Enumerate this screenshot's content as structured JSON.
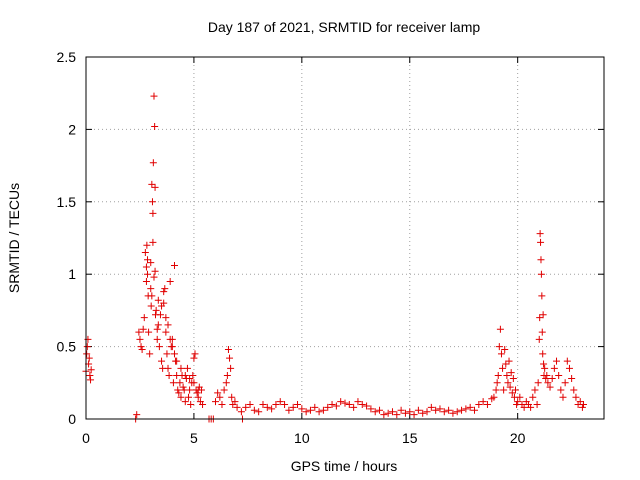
{
  "chart_data": {
    "type": "scatter",
    "title": "Day 187 of 2021, SRMTID for receiver lamp",
    "xlabel": "GPS time / hours",
    "ylabel": "SRMTID / TECUs",
    "xlim": [
      0,
      24
    ],
    "ylim": [
      0,
      2.5
    ],
    "grid": true,
    "marker": "+",
    "x_ticks": [
      0,
      5,
      10,
      15,
      20
    ],
    "x_tick_labels": [
      "0",
      "5",
      "10",
      "15",
      "20"
    ],
    "y_ticks": [
      0,
      0.5,
      1,
      1.5,
      2,
      2.5
    ],
    "y_tick_labels": [
      "0",
      "0.5",
      "1",
      "1.5",
      "2",
      "2.5"
    ],
    "color": "#e00000",
    "series": [
      {
        "name": "SRMTID",
        "x": [
          0.0,
          0.03,
          0.06,
          0.09,
          0.12,
          0.15,
          0.18,
          0.21,
          0.24,
          2.3,
          2.35,
          2.45,
          2.5,
          2.55,
          2.6,
          2.65,
          2.7,
          2.75,
          2.8,
          2.85,
          2.9,
          2.95,
          3.0,
          3.05,
          3.1,
          3.12,
          3.15,
          3.18,
          3.2,
          3.25,
          3.3,
          3.35,
          3.4,
          3.45,
          3.5,
          3.55,
          3.6,
          3.65,
          3.7,
          3.75,
          3.8,
          3.85,
          3.9,
          3.95,
          4.0,
          4.05,
          4.1,
          4.15,
          4.2,
          4.25,
          4.3,
          4.35,
          4.4,
          4.45,
          4.5,
          4.55,
          4.6,
          4.65,
          4.7,
          4.75,
          4.8,
          4.85,
          4.9,
          4.95,
          5.0,
          5.05,
          5.1,
          5.15,
          5.2,
          5.25,
          5.3,
          5.35,
          5.4,
          2.8,
          2.82,
          2.85,
          2.88,
          3.0,
          3.02,
          3.05,
          3.08,
          3.1,
          3.15,
          3.2,
          3.22,
          3.3,
          3.35,
          3.5,
          3.6,
          3.7,
          3.8,
          3.9,
          4.0,
          4.1,
          4.2,
          4.4,
          4.6,
          4.8,
          5.0,
          5.2,
          5.7,
          5.8,
          5.9,
          6.0,
          6.1,
          6.2,
          6.3,
          6.4,
          6.5,
          6.55,
          6.6,
          6.65,
          6.7,
          6.75,
          6.8,
          6.9,
          7.0,
          7.2,
          7.25,
          7.4,
          7.6,
          7.8,
          8.0,
          8.2,
          8.4,
          8.6,
          8.8,
          9.0,
          9.2,
          9.4,
          9.6,
          9.8,
          10.0,
          10.2,
          10.4,
          10.6,
          10.8,
          11.0,
          11.2,
          11.4,
          11.6,
          11.8,
          12.0,
          12.2,
          12.4,
          12.6,
          12.8,
          13.0,
          13.2,
          13.4,
          13.6,
          13.8,
          14.0,
          14.2,
          14.4,
          14.6,
          14.8,
          15.0,
          15.2,
          15.4,
          15.6,
          15.8,
          16.0,
          16.2,
          16.4,
          16.6,
          16.8,
          17.0,
          17.2,
          17.4,
          17.6,
          17.8,
          18.0,
          18.2,
          18.4,
          18.6,
          18.8,
          18.9,
          19.0,
          19.05,
          19.1,
          19.15,
          19.2,
          19.25,
          19.3,
          19.35,
          19.4,
          19.45,
          19.5,
          19.55,
          19.6,
          19.65,
          19.7,
          19.75,
          19.8,
          19.85,
          19.9,
          19.95,
          20.0,
          20.1,
          20.2,
          20.3,
          20.4,
          20.5,
          20.6,
          20.7,
          20.8,
          20.9,
          20.95,
          21.0,
          21.02,
          21.04,
          21.06,
          21.08,
          21.1,
          21.12,
          21.14,
          21.16,
          21.18,
          21.2,
          21.22,
          21.25,
          21.3,
          21.35,
          21.4,
          21.5,
          21.6,
          21.7,
          21.8,
          21.9,
          22.0,
          22.1,
          22.2,
          22.3,
          22.4,
          22.5,
          22.6,
          22.7,
          22.8,
          22.9,
          23.0,
          23.05
        ],
        "y": [
          0.33,
          0.45,
          0.5,
          0.55,
          0.38,
          0.42,
          0.3,
          0.27,
          0.34,
          0.0,
          0.03,
          0.6,
          0.55,
          0.5,
          0.48,
          0.62,
          0.7,
          1.15,
          0.95,
          1.1,
          0.6,
          0.45,
          0.9,
          0.85,
          1.42,
          1.77,
          2.23,
          2.02,
          1.6,
          0.75,
          0.55,
          0.65,
          0.5,
          0.72,
          0.4,
          0.35,
          0.8,
          0.9,
          0.6,
          0.45,
          0.35,
          0.3,
          0.95,
          0.5,
          0.55,
          0.25,
          1.06,
          0.4,
          0.3,
          0.2,
          0.18,
          0.25,
          0.15,
          0.3,
          0.22,
          0.2,
          0.12,
          0.28,
          0.35,
          0.15,
          0.2,
          0.1,
          0.25,
          0.3,
          0.42,
          0.45,
          0.2,
          0.18,
          0.15,
          0.22,
          0.12,
          0.2,
          0.1,
          1.05,
          1.2,
          1.0,
          0.85,
          1.08,
          0.78,
          1.62,
          1.5,
          1.22,
          0.98,
          1.02,
          0.72,
          0.62,
          0.82,
          0.78,
          0.88,
          0.7,
          0.65,
          0.55,
          0.5,
          0.45,
          0.4,
          0.35,
          0.3,
          0.28,
          0.25,
          0.2,
          0.0,
          0.0,
          0.0,
          0.12,
          0.18,
          0.15,
          0.1,
          0.2,
          0.25,
          0.3,
          0.48,
          0.42,
          0.35,
          0.15,
          0.1,
          0.12,
          0.08,
          0.05,
          0.0,
          0.08,
          0.1,
          0.06,
          0.05,
          0.1,
          0.08,
          0.07,
          0.1,
          0.12,
          0.1,
          0.06,
          0.08,
          0.1,
          0.07,
          0.05,
          0.06,
          0.08,
          0.05,
          0.06,
          0.08,
          0.1,
          0.09,
          0.12,
          0.11,
          0.1,
          0.08,
          0.12,
          0.1,
          0.09,
          0.07,
          0.05,
          0.06,
          0.03,
          0.04,
          0.05,
          0.03,
          0.06,
          0.04,
          0.05,
          0.03,
          0.06,
          0.04,
          0.05,
          0.08,
          0.06,
          0.07,
          0.05,
          0.06,
          0.04,
          0.05,
          0.06,
          0.07,
          0.08,
          0.06,
          0.1,
          0.12,
          0.1,
          0.14,
          0.15,
          0.2,
          0.25,
          0.3,
          0.5,
          0.62,
          0.45,
          0.35,
          0.2,
          0.48,
          0.38,
          0.3,
          0.25,
          0.4,
          0.22,
          0.32,
          0.18,
          0.28,
          0.15,
          0.2,
          0.1,
          0.12,
          0.15,
          0.1,
          0.08,
          0.12,
          0.1,
          0.08,
          0.15,
          0.2,
          0.1,
          0.25,
          0.55,
          0.7,
          1.28,
          1.22,
          1.1,
          1.0,
          0.85,
          0.6,
          0.45,
          0.72,
          0.38,
          0.3,
          0.35,
          0.28,
          0.3,
          0.25,
          0.22,
          0.28,
          0.35,
          0.4,
          0.3,
          0.2,
          0.15,
          0.25,
          0.4,
          0.35,
          0.28,
          0.2,
          0.15,
          0.1,
          0.12,
          0.08,
          0.1
        ]
      }
    ]
  }
}
